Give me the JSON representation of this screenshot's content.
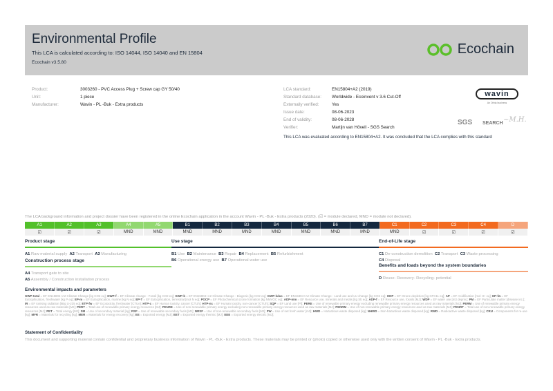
{
  "header": {
    "title": "Environmental Profile",
    "subtitle": "This LCA is calculated according to: ISO 14044, ISO 14040 and EN 15804",
    "version": "Ecochain v3.5.80",
    "logo_text": "Ecochain",
    "logo_color": "#5bbf2a"
  },
  "product_info": [
    {
      "label": "Product:",
      "value": "3003260 - PVC Access Plug + Screw cap GY 50/40"
    },
    {
      "label": "Unit:",
      "value": "1 piece"
    },
    {
      "label": "Manufacturer:",
      "value": "Wavin - PL -Buk - Extra products"
    }
  ],
  "lca_info": [
    {
      "label": "LCA standard:",
      "value": "EN15804+A2 (2019)"
    },
    {
      "label": "Standard database:",
      "value": "Worldwide - Ecoinvent v 3.6 Cut-Off"
    },
    {
      "label": "Externally verified:",
      "value": "Yes"
    },
    {
      "label": "Issue date:",
      "value": "08-06-2023"
    },
    {
      "label": "End of validity:",
      "value": "08-06-2028"
    },
    {
      "label": "Verifier:",
      "value": "Martijn van Hövell - SGS Search"
    }
  ],
  "logos": {
    "wavin": "wavin",
    "wavin_sub": "An Orbia business",
    "sgs": "SGS",
    "search": "SEARCH"
  },
  "conclusion": "This LCA was evaluated according to EN15804+A2. It was concluded that the LCA complies with this standard",
  "note": "The LCA background information and project dossier have been registered in the online Ecochain application in the account Wavin - PL -Buk - Extra products (2020). (☑ = module declared, MND = module not declared).",
  "colors": {
    "product": "#52c02a",
    "construction": "#92d870",
    "use": "#14283f",
    "eol": "#f26a1f",
    "beyond": "#f5a57c"
  },
  "modules": [
    {
      "code": "A1",
      "status": "☑",
      "group": "product"
    },
    {
      "code": "A2",
      "status": "☑",
      "group": "product"
    },
    {
      "code": "A3",
      "status": "☑",
      "group": "product"
    },
    {
      "code": "A4",
      "status": "MND",
      "group": "construction"
    },
    {
      "code": "A5",
      "status": "MND",
      "group": "construction"
    },
    {
      "code": "B1",
      "status": "MND",
      "group": "use"
    },
    {
      "code": "B2",
      "status": "MND",
      "group": "use"
    },
    {
      "code": "B3",
      "status": "MND",
      "group": "use"
    },
    {
      "code": "B4",
      "status": "MND",
      "group": "use"
    },
    {
      "code": "B5",
      "status": "MND",
      "group": "use"
    },
    {
      "code": "B6",
      "status": "MND",
      "group": "use"
    },
    {
      "code": "B7",
      "status": "MND",
      "group": "use"
    },
    {
      "code": "C1",
      "status": "MND",
      "group": "eol"
    },
    {
      "code": "C2",
      "status": "☑",
      "group": "eol"
    },
    {
      "code": "C3",
      "status": "☑",
      "group": "eol"
    },
    {
      "code": "C4",
      "status": "☑",
      "group": "eol"
    },
    {
      "code": "D",
      "status": "☑",
      "group": "beyond"
    }
  ],
  "stages": {
    "product": {
      "title": "Product stage",
      "items": [
        [
          "A1",
          "Raw material supply"
        ],
        [
          "A2",
          "Transport"
        ],
        [
          "A3",
          "Manufacturing"
        ]
      ]
    },
    "construction": {
      "title": "Construction process stage",
      "items": [
        [
          "A4",
          "Transport gate to site"
        ],
        [
          "A5",
          "Assembly / Construction installation process"
        ]
      ]
    },
    "use": {
      "title": "Use stage",
      "items": [
        [
          "B1",
          "Use"
        ],
        [
          "B2",
          "Maintenance"
        ],
        [
          "B3",
          "Repair"
        ],
        [
          "B4",
          "Replacement"
        ],
        [
          "B5",
          "Refurbishment"
        ],
        [
          "B6",
          "Operational energy use"
        ],
        [
          "B7",
          "Operational water use"
        ]
      ]
    },
    "eol": {
      "title": "End-of-Life stage",
      "items": [
        [
          "C1",
          "De-construction demolition"
        ],
        [
          "C2",
          "Transport"
        ],
        [
          "C3",
          "Waste processing"
        ],
        [
          "C4",
          "Disposal"
        ]
      ]
    },
    "beyond": {
      "title": "Benefits and loads beyond the system boundaries",
      "items": [
        [
          "D",
          "Reuse- Recovery- Recycling- potential"
        ]
      ]
    }
  },
  "env_title": "Environmental impacts and parameters",
  "glossary": [
    [
      "GWP-total",
      "EF EN15804+A2 Climate Change [kg CO2 eq]"
    ],
    [
      "GWP-f",
      "EF Climate change - Fossil [kg CO2 eq]"
    ],
    [
      "GWP-b",
      "EF EN15804+A2 Climate Change - Biogenic [kg CO2 eq]"
    ],
    [
      "GWP-luluc",
      "EF EN15804+A2 Climate Change - Land use and LU change [kg CO2 eq]"
    ],
    [
      "ODP",
      "EF Ozone depletion [kg CFC11 eq]"
    ],
    [
      "AP",
      "EF Acidification [mol H+ eq]"
    ],
    [
      "EP-fw",
      "EF Eutrophication, freshwater [kg P eq]"
    ],
    [
      "EP-m",
      "EF Eutrophication, marine [kg N eq]"
    ],
    [
      "EP-T",
      "EF Eutrophication, terrestrial [mol N eq]"
    ],
    [
      "POCP",
      "EF Photochemical ozone formation [kg NMVOC eq]"
    ],
    [
      "ADP-mm",
      "EF Resource use, minerals and metals [kg Sb eq]"
    ],
    [
      "ADP-f",
      "EF Resource use, fossils [MJ]"
    ],
    [
      "WDP",
      "EF water use [m3 depriv.]"
    ],
    [
      "PM",
      "EF Particulate matter [disease inc.]"
    ],
    [
      "IR",
      "EF Ionising radiation [kBq U-235 eq]"
    ],
    [
      "ETP-fw",
      "EF Ecotoxicity, freshwater [CTUe]"
    ],
    [
      "HTP-c",
      "EF Human toxicity, cancer [CTUh]"
    ],
    [
      "HTP-nc",
      "EF Human toxicity, non-cancer [CTUh]"
    ],
    [
      "SQP",
      "EF Land use [Pt]"
    ],
    [
      "PERE",
      "Use of renewable primary energy excluding renewable primary energy resources used as raw materials [MJ]"
    ],
    [
      "PERM",
      "Use of renewable primary energy resources used as raw materials [MJ]"
    ],
    [
      "PERT",
      "Total use of renewable primary energy resources [MJ]"
    ],
    [
      "PENRE",
      "Use of non-renewable primary energy excluding non-renewable primary energy resources used as raw materials [MJ]"
    ],
    [
      "PENRM",
      "Use of non-renewable primary energy resources used as raw materials [MJ]"
    ],
    [
      "PENRT",
      "Total use of non-renewable primary energy resources [MJ]"
    ],
    [
      "PET",
      "Total energy [MJ]"
    ],
    [
      "SM",
      "Use of secondary material [kg]"
    ],
    [
      "RSF",
      "Use of renewable secondary fuels [MJ]"
    ],
    [
      "NRSF",
      "Use of non-renewable secondary fuels [MJ]"
    ],
    [
      "FW",
      "Use of net fresh water [m3]"
    ],
    [
      "HWD",
      "Hazardous waste disposed [kg]"
    ],
    [
      "NHWD",
      "Non-hazardous waste disposed [kg]"
    ],
    [
      "RWD",
      "Radioactive waste disposed [kg]"
    ],
    [
      "CRU",
      "Components for re-use [kg]"
    ],
    [
      "MFR",
      "Materials for recycling [kg]"
    ],
    [
      "MER",
      "Materials for energy recovery [kg]"
    ],
    [
      "EE",
      "Exported energy [MJ]"
    ],
    [
      "EET",
      "Exported energy thermic [MJ]"
    ],
    [
      "EEE",
      "Exported energy electric [MJ]"
    ]
  ],
  "confidentiality": {
    "title": "Statement of Confidentiality",
    "text": "This document and supporting material contain confidential and proprietary business information of Wavin - PL -Buk - Extra products. These materials may be printed or (photo) copied or otherwise used only with the written consent of Wavin - PL -Buk - Extra products."
  }
}
